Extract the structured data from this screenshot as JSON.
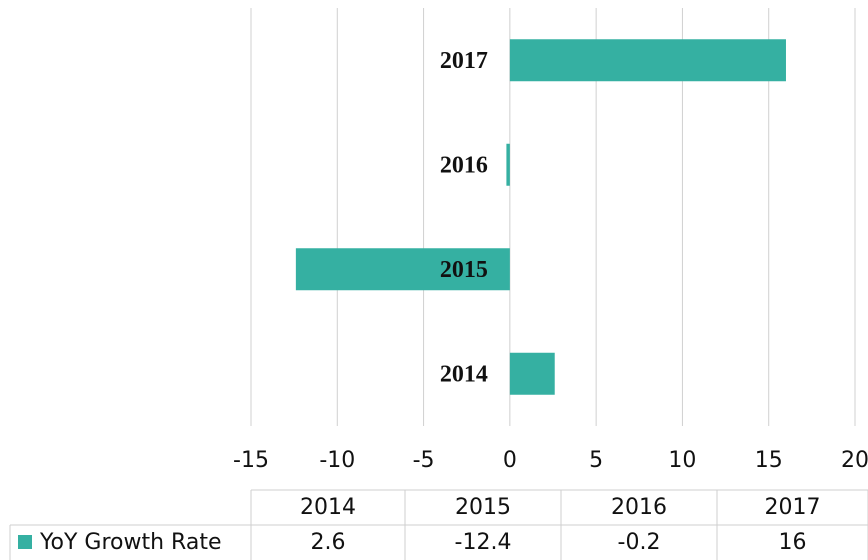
{
  "chart_data": {
    "type": "bar",
    "orientation": "horizontal",
    "categories": [
      "2014",
      "2015",
      "2016",
      "2017"
    ],
    "series": [
      {
        "name": "YoY Growth Rate",
        "color": "#35b0a2",
        "values": [
          2.6,
          -12.4,
          -0.2,
          16
        ]
      }
    ],
    "xlim": [
      -15,
      20
    ],
    "xticks": [
      -15,
      -10,
      -5,
      0,
      5,
      10,
      15,
      20
    ],
    "grid": true,
    "data_table": true
  }
}
